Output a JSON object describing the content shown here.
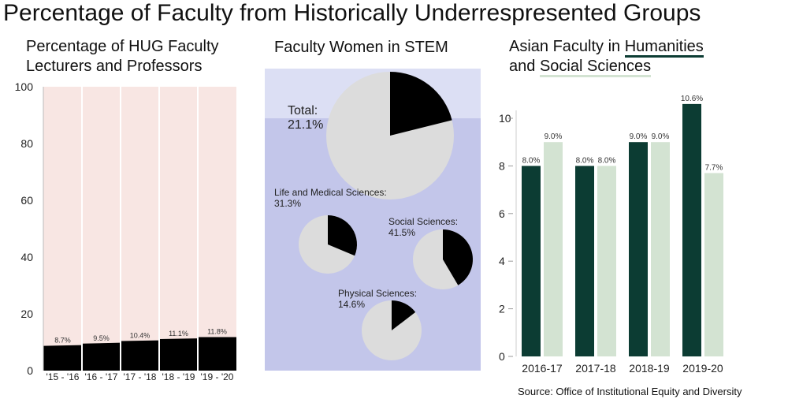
{
  "title": "Percentage of Faculty from Historically Underrespresented Groups",
  "source": "Source: Office of Institutional Equity and Diversity",
  "colors": {
    "pink": "#f8e6e3",
    "black": "#000000",
    "lavender_light": "#dcdff4",
    "lavender": "#c3c6ea",
    "pie_gray": "#dcdcdc",
    "dark_green": "#0c3c33",
    "light_green": "#d3e3d2"
  },
  "chart_data": [
    {
      "type": "area",
      "title_lines": [
        "Percentage of HUG Faculty",
        "Lecturers and Professors"
      ],
      "categories": [
        "'15 - '16",
        "'16 - '17",
        "'17 - '18",
        "'18 - '19",
        "'19 - '20"
      ],
      "values": [
        8.7,
        9.5,
        10.4,
        11.1,
        11.8
      ],
      "labels": [
        "8.7%",
        "9.5%",
        "10.4%",
        "11.1%",
        "11.8%"
      ],
      "ylim": [
        0,
        100
      ],
      "yticks": [
        "0",
        "20",
        "40",
        "60",
        "80",
        "100"
      ]
    },
    {
      "type": "pie",
      "title": "Faculty Women in STEM",
      "pies": [
        {
          "label": "Total:",
          "value_label": "21.1%",
          "value": 21.1
        },
        {
          "label": "Life and Medical Sciences:",
          "value_label": "31.3%",
          "value": 31.3
        },
        {
          "label": "Social Sciences:",
          "value_label": "41.5%",
          "value": 41.5
        },
        {
          "label": "Physical Sciences:",
          "value_label": "14.6%",
          "value": 14.6
        }
      ]
    },
    {
      "type": "bar",
      "title_lines": [
        "Asian Faculty in Humanities",
        "and Social Sciences"
      ],
      "title_parts": {
        "a": "Asian Faculty in ",
        "humanities": "Humanities",
        "b": "and ",
        "social": "Social Sciences"
      },
      "categories": [
        "2016-17",
        "2017-18",
        "2018-19",
        "2019-20"
      ],
      "series": [
        {
          "name": "Humanities",
          "values": [
            8.0,
            8.0,
            9.0,
            10.6
          ]
        },
        {
          "name": "Social Sciences",
          "values": [
            9.0,
            8.0,
            9.0,
            7.7
          ]
        }
      ],
      "ylim": [
        0,
        10.6
      ],
      "yticks": [
        "0",
        "2",
        "4",
        "6",
        "8",
        "10"
      ]
    }
  ]
}
